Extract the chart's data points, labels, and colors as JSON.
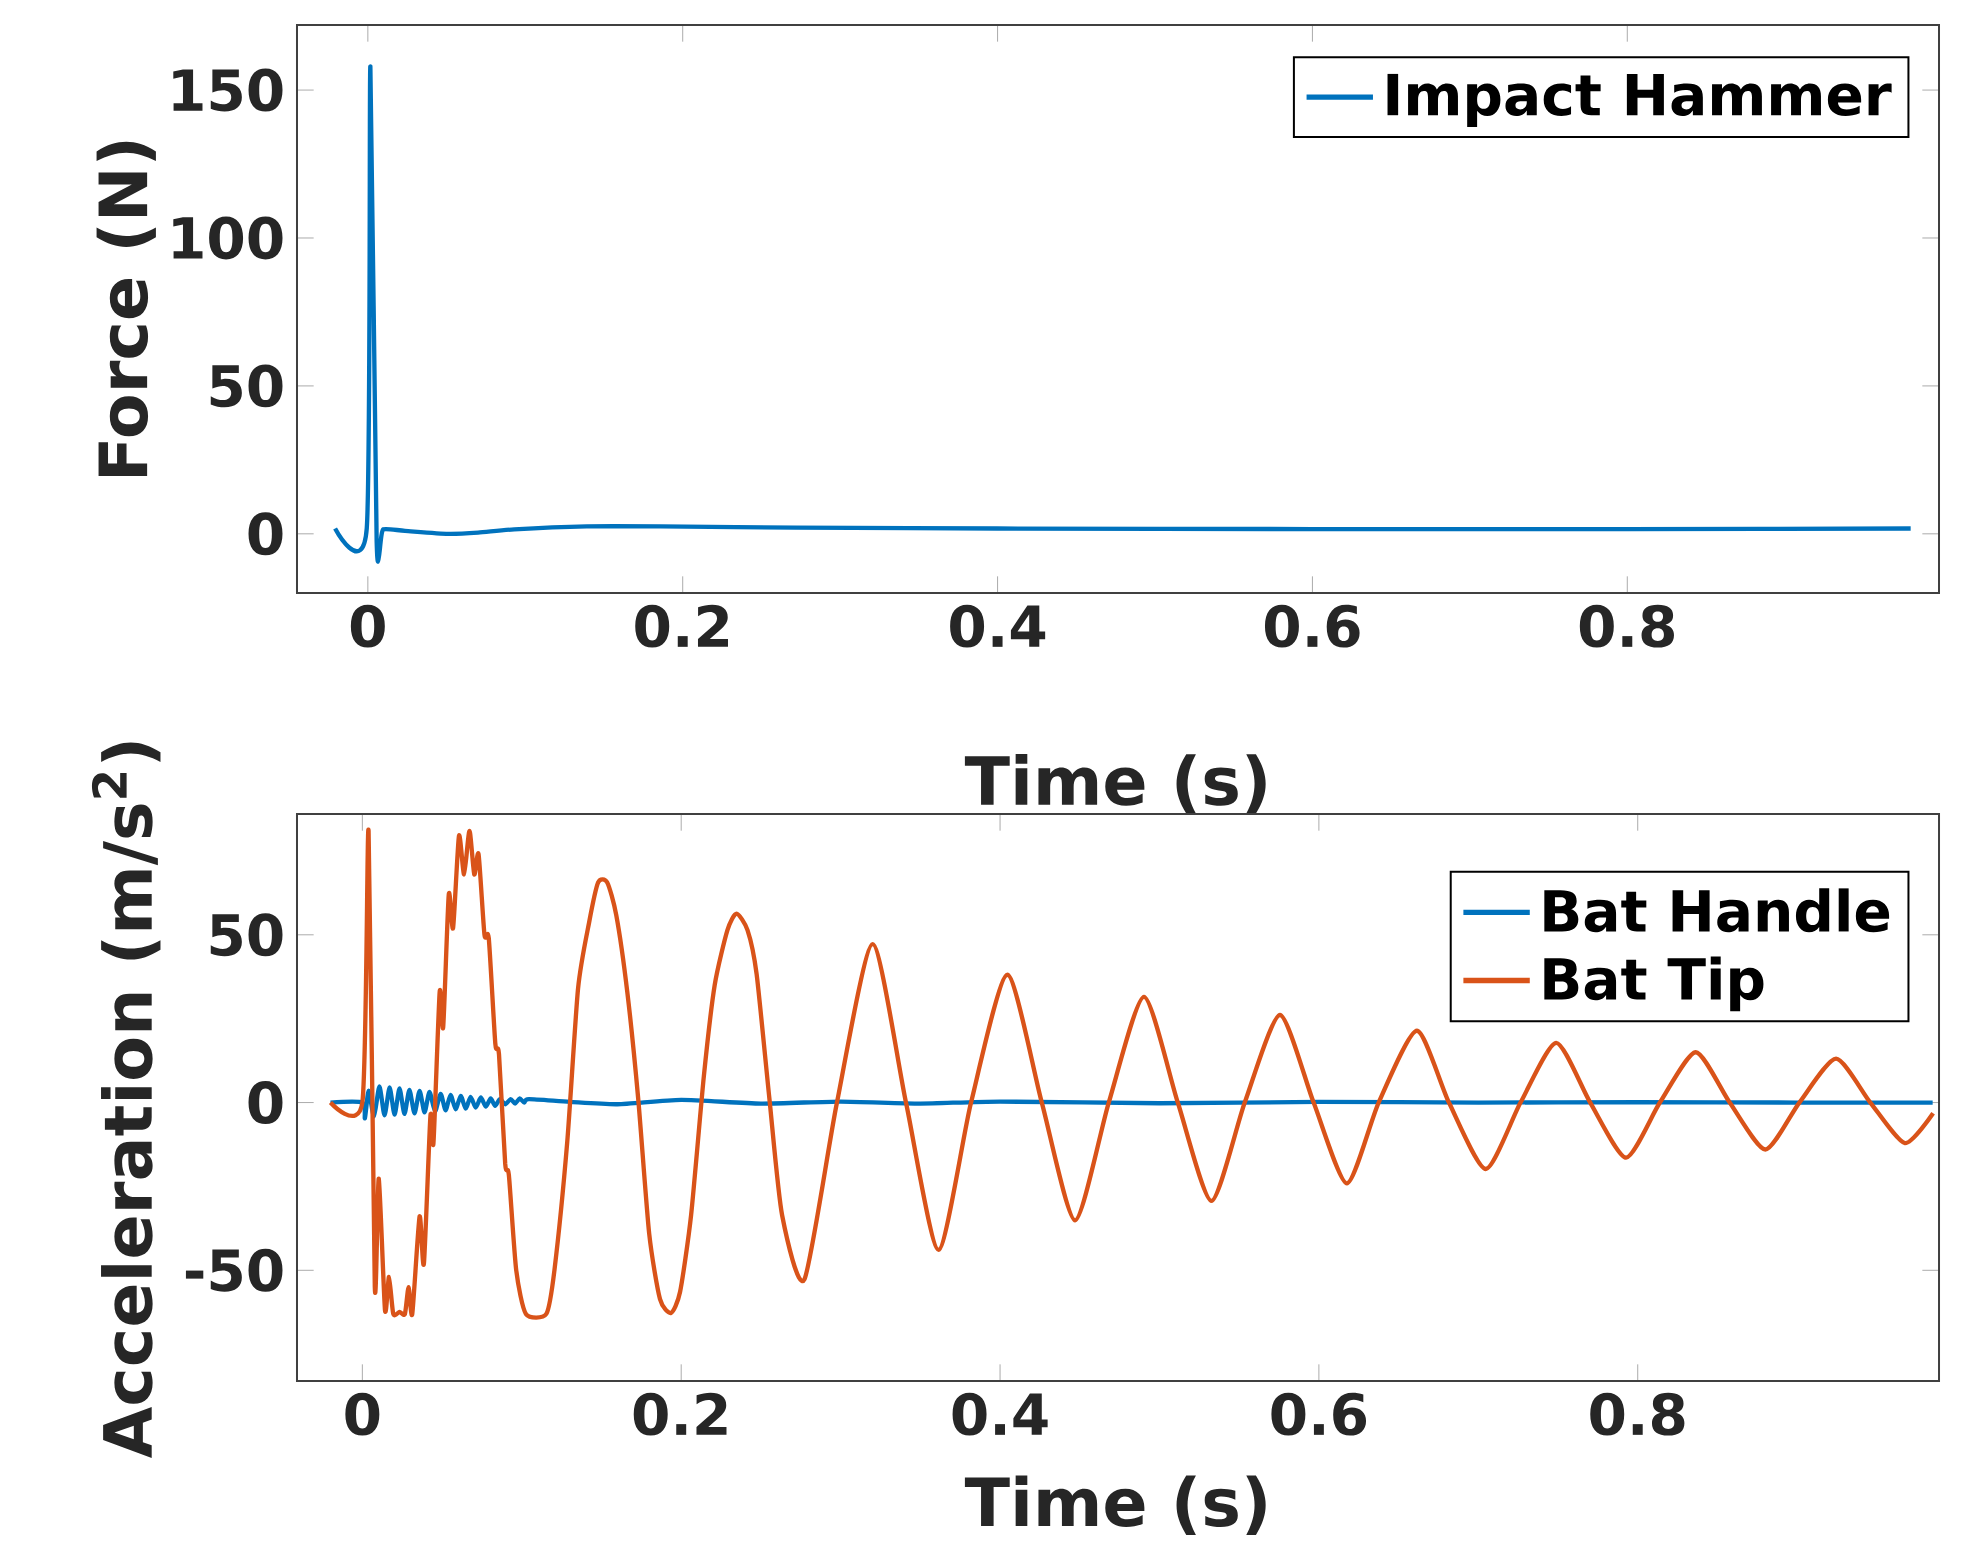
{
  "chart_data": [
    {
      "type": "line",
      "xlabel": "Time (s)",
      "ylabel": "Force (N)",
      "xlim": [
        -0.045,
        0.998
      ],
      "ylim": [
        -20,
        172
      ],
      "xticks": [
        0,
        0.2,
        0.4,
        0.6,
        0.8
      ],
      "yticks": [
        0,
        50,
        100,
        150
      ],
      "legend": "top right",
      "series": [
        {
          "name": "Impact Hammer",
          "color": "#0072bd",
          "x": [
            -0.0208,
            -0.0007,
            0.0016,
            0.0056,
            0.0097,
            0.0236,
            0.051,
            0.07,
            0.093,
            0.139,
            0.186,
            0.272,
            0.4,
            0.6,
            0.8,
            0.98
          ],
          "values": [
            1.8,
            1.8,
            158,
            -2.5,
            1.5,
            1.0,
            0,
            0.4,
            1.5,
            2.5,
            2.5,
            2.1,
            1.8,
            1.6,
            1.6,
            1.8
          ]
        }
      ]
    },
    {
      "type": "line",
      "xlabel": "Time (s)",
      "ylabel": "Acceleration (m/s$^{2}$)",
      "xlim": [
        -0.041,
        0.989
      ],
      "ylim": [
        -83,
        86
      ],
      "xticks": [
        0,
        0.2,
        0.4,
        0.6,
        0.8
      ],
      "yticks": [
        -50,
        0,
        50
      ],
      "legend": "top right",
      "series": [
        {
          "name": "Bat Handle",
          "color": "#0072bd",
          "x": [
            -0.02,
            0.0,
            0.0016,
            0.0039,
            0.0073,
            0.0107,
            0.0139,
            0.0171,
            0.0202,
            0.0233,
            0.0264,
            0.0295,
            0.0327,
            0.0359,
            0.039,
            0.0421,
            0.0456,
            0.0491,
            0.0522,
            0.0553,
            0.0585,
            0.0617,
            0.0648,
            0.0679,
            0.0711,
            0.0743,
            0.0774,
            0.0805,
            0.0833,
            0.0862,
            0.0896,
            0.093,
            0.0958,
            0.0987,
            0.1016,
            0.1045,
            0.13,
            0.16,
            0.2,
            0.25,
            0.3,
            0.35,
            0.4,
            0.5,
            0.6,
            0.7,
            0.8,
            0.9,
            0.985
          ],
          "values": [
            0,
            0,
            -4.7,
            3.5,
            -4.1,
            4.8,
            -3.8,
            4.5,
            -3.6,
            4.2,
            -3.4,
            3.8,
            -3.2,
            3.5,
            -2.9,
            3.2,
            -2.6,
            2.6,
            -2.3,
            2.3,
            -2.0,
            2.0,
            -1.8,
            1.7,
            -1.5,
            1.5,
            -1.2,
            1.2,
            -1.0,
            1.0,
            -0.5,
            1.0,
            -0.3,
            1.2,
            0,
            1.0,
            0.2,
            -0.5,
            0.8,
            -0.3,
            0.3,
            -0.3,
            0.3,
            -0.2,
            0.2,
            0,
            0.1,
            0,
            0
          ]
        },
        {
          "name": "Bat Tip",
          "color": "#d95319",
          "x": [
            -0.02,
            0.0,
            0.0039,
            0.0078,
            0.0103,
            0.0142,
            0.0167,
            0.0194,
            0.0233,
            0.0267,
            0.029,
            0.0313,
            0.0359,
            0.0386,
            0.0427,
            0.0446,
            0.0485,
            0.0507,
            0.0542,
            0.0569,
            0.0606,
            0.0638,
            0.0672,
            0.0702,
            0.0729,
            0.0766,
            0.0793,
            0.0834,
            0.0857,
            0.0896,
            0.0919,
            0.0965,
            0.1026,
            0.1154,
            0.1205,
            0.1285,
            0.1353,
            0.1422,
            0.1479,
            0.1536,
            0.1593,
            0.1662,
            0.173,
            0.1799,
            0.1867,
            0.1936,
            0.1993,
            0.2062,
            0.2142,
            0.221,
            0.229,
            0.2347,
            0.2416,
            0.2473,
            0.2553,
            0.2633,
            0.2773,
            0.2977,
            0.3201,
            0.341,
            0.3614,
            0.3818,
            0.4046,
            0.4262,
            0.4471,
            0.4682,
            0.4903,
            0.5115,
            0.5326,
            0.5535,
            0.5756,
            0.5967,
            0.6176,
            0.6375,
            0.6615,
            0.6816,
            0.7047,
            0.7265,
            0.7489,
            0.7702,
            0.7927,
            0.8139,
            0.8364,
            0.8577,
            0.8801,
            0.9014,
            0.9244,
            0.9459,
            0.9676,
            0.9853
          ],
          "values": [
            0,
            0,
            81,
            -54.8,
            -22.7,
            -61.9,
            -52,
            -63,
            -62.4,
            -63,
            -55,
            -63,
            -34,
            -48,
            -4,
            -12,
            33,
            22.5,
            62,
            52,
            79.5,
            68,
            81,
            68,
            74,
            50,
            49,
            17.6,
            14.4,
            -18.3,
            -21.6,
            -49.9,
            -63,
            -63,
            -49.9,
            -11.8,
            34,
            53.6,
            65.6,
            65.6,
            55.8,
            32.9,
            1.3,
            -39,
            -58.6,
            -62.7,
            -56.4,
            -33.6,
            7.8,
            35,
            51.4,
            56.3,
            51.4,
            38.3,
            1.3,
            -33.6,
            -52.7,
            0,
            47.2,
            0,
            -43.9,
            0,
            38.1,
            0,
            -35.1,
            0,
            31.5,
            0,
            -29.3,
            0,
            26.1,
            0,
            -24.1,
            0,
            21.4,
            0,
            -19.8,
            0,
            17.8,
            0,
            -16.4,
            0,
            15.0,
            0,
            -14.0,
            0,
            13.1,
            0,
            -12.1,
            -3.2
          ]
        }
      ]
    }
  ]
}
